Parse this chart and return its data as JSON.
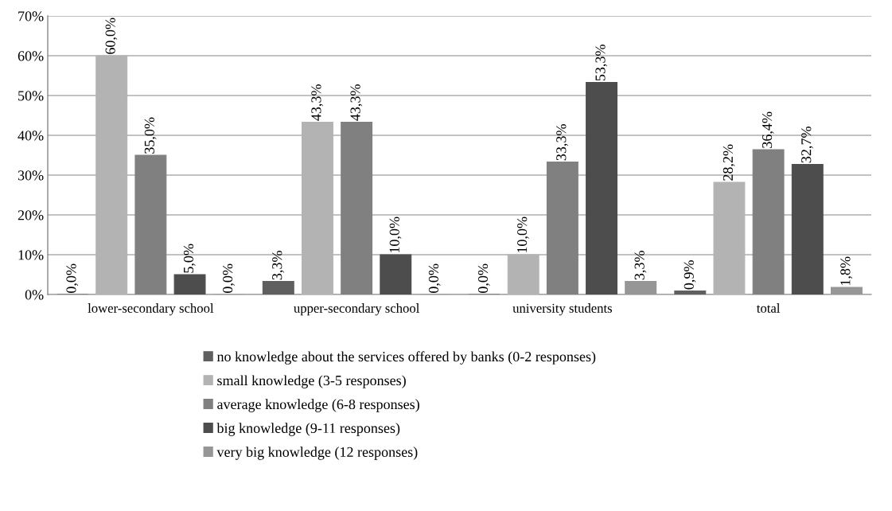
{
  "chart_data": {
    "type": "bar",
    "categories": [
      "lower-secondary school",
      "upper-secondary school",
      "university students",
      "total"
    ],
    "series": [
      {
        "name": "no knowledge about the services offered by banks (0-2 responses)",
        "color": "#5f5f5f",
        "values": [
          0.0,
          3.3,
          0.0,
          0.9
        ],
        "value_labels": [
          "0,0%",
          "3,3%",
          "0,0%",
          "0,9%"
        ]
      },
      {
        "name": "small knowledge (3-5 responses)",
        "color": "#b3b3b3",
        "values": [
          60.0,
          43.3,
          10.0,
          28.2
        ],
        "value_labels": [
          "60,0%",
          "43,3%",
          "10,0%",
          "28,2%"
        ]
      },
      {
        "name": "average knowledge (6-8 responses)",
        "color": "#808080",
        "values": [
          35.0,
          43.3,
          33.3,
          36.4
        ],
        "value_labels": [
          "35,0%",
          "43,3%",
          "33,3%",
          "36,4%"
        ]
      },
      {
        "name": "big knowledge (9-11 responses)",
        "color": "#4d4d4d",
        "values": [
          5.0,
          10.0,
          53.3,
          32.7
        ],
        "value_labels": [
          "5,0%",
          "10,0%",
          "53,3%",
          "32,7%"
        ]
      },
      {
        "name": "very big knowledge (12 responses)",
        "color": "#969696",
        "values": [
          0.0,
          0.0,
          3.3,
          1.8
        ],
        "value_labels": [
          "0,0%",
          "0,0%",
          "3,3%",
          "1,8%"
        ]
      }
    ],
    "ylim": [
      0,
      70
    ],
    "yticks": [
      {
        "value": 0,
        "label": "0%"
      },
      {
        "value": 10,
        "label": "10%"
      },
      {
        "value": 20,
        "label": "20%"
      },
      {
        "value": 30,
        "label": "30%"
      },
      {
        "value": 40,
        "label": "40%"
      },
      {
        "value": 50,
        "label": "50%"
      },
      {
        "value": 60,
        "label": "60%"
      },
      {
        "value": 70,
        "label": "70%"
      }
    ],
    "grid": "y",
    "legend": "bottom"
  }
}
